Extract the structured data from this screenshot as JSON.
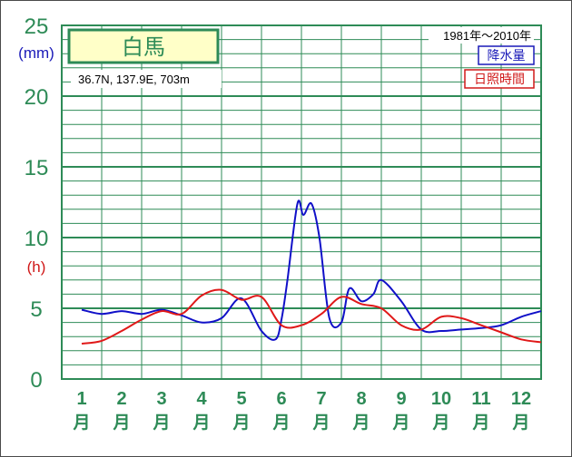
{
  "chart_data": {
    "type": "line",
    "title": "白馬",
    "location": "36.7N, 137.9E, 703m",
    "period": "1981年〜2010年",
    "y_unit_left": "(mm)",
    "y_unit_right": "(h)",
    "ylim": [
      0,
      25
    ],
    "yticks": [
      0,
      5,
      10,
      15,
      20,
      25
    ],
    "months": [
      "1",
      "2",
      "3",
      "4",
      "5",
      "6",
      "7",
      "8",
      "9",
      "10",
      "11",
      "12"
    ],
    "month_suffix": "月",
    "series": [
      {
        "name": "降水量",
        "color": "#1010c8",
        "x": [
          1,
          1.5,
          2,
          2.5,
          3,
          3.5,
          4,
          4.5,
          5,
          5.5,
          5.85,
          6.0,
          6.15,
          6.4,
          6.55,
          6.75,
          6.95,
          7.2,
          7.5,
          7.7,
          8,
          8.3,
          8.5,
          9,
          9.5,
          10,
          10.5,
          11,
          11.5,
          12,
          12.5
        ],
        "values": [
          4.9,
          4.6,
          4.8,
          4.6,
          4.9,
          4.5,
          4.0,
          4.3,
          5.7,
          3.4,
          2.8,
          4.2,
          7.0,
          12.4,
          11.6,
          12.4,
          10.0,
          4.3,
          4.0,
          6.4,
          5.5,
          6.0,
          7.0,
          5.5,
          3.5,
          3.4,
          3.5,
          3.6,
          3.8,
          4.4,
          4.8
        ]
      },
      {
        "name": "日照時間",
        "color": "#e01818",
        "x": [
          1,
          1.5,
          2,
          2.5,
          3,
          3.5,
          4,
          4.5,
          5,
          5.5,
          6,
          6.5,
          7,
          7.5,
          8,
          8.5,
          9,
          9.5,
          10,
          10.5,
          11,
          11.5,
          12,
          12.5
        ],
        "values": [
          2.5,
          2.7,
          3.4,
          4.2,
          4.8,
          4.6,
          5.9,
          6.3,
          5.6,
          5.8,
          3.8,
          3.8,
          4.6,
          5.8,
          5.3,
          5.0,
          3.8,
          3.5,
          4.4,
          4.3,
          3.8,
          3.3,
          2.8,
          2.6
        ]
      }
    ]
  }
}
